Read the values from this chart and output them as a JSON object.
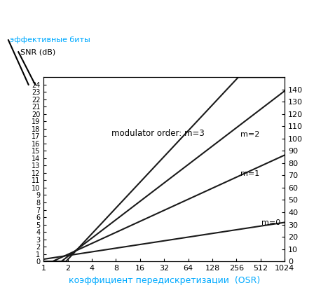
{
  "xlabel": "коэффициент передискретизации  (OSR)",
  "legend_label_enob": "эффективные биты",
  "legend_label_snr": "SNR (dB)",
  "xticks": [
    1,
    2,
    4,
    8,
    16,
    32,
    64,
    128,
    256,
    512,
    1024
  ],
  "xtick_labels": [
    "1",
    "2",
    "4",
    "8",
    "16",
    "32",
    "64",
    "128",
    "256",
    "512",
    "1024"
  ],
  "ylim_snr": [
    0,
    150
  ],
  "ylim_enob": [
    0,
    25
  ],
  "yticks_snr": [
    0,
    10,
    20,
    30,
    40,
    50,
    60,
    70,
    80,
    90,
    100,
    110,
    120,
    130,
    140
  ],
  "yticks_enob": [
    0,
    1,
    2,
    3,
    4,
    5,
    6,
    7,
    8,
    9,
    10,
    11,
    12,
    13,
    14,
    15,
    16,
    17,
    18,
    19,
    20,
    21,
    22,
    23,
    24
  ],
  "annotation_text": "modulator order: m=3",
  "background_color": "#ffffff",
  "line_color": "#1a1a1a",
  "xlabel_color": "#00aaff",
  "enob_label_color": "#00aaff",
  "snr_label_color": "#000000",
  "text_color": "#000000",
  "figsize": [
    4.78,
    4.24
  ],
  "dpi": 100
}
